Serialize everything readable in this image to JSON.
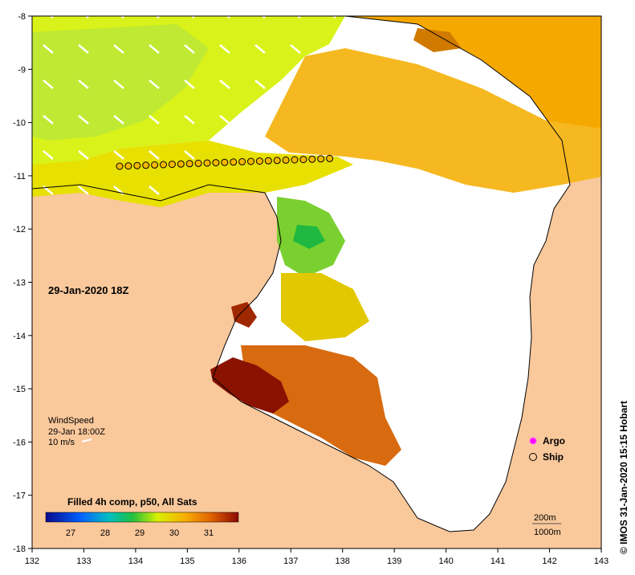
{
  "map": {
    "x_ticks": [
      "132",
      "133",
      "134",
      "135",
      "136",
      "137",
      "138",
      "139",
      "140",
      "141",
      "142",
      "143"
    ],
    "y_ticks": [
      "-8",
      "-9",
      "-10",
      "-11",
      "-12",
      "-13",
      "-14",
      "-15",
      "-16",
      "-17",
      "-18"
    ],
    "time_label": "29-Jan-2020 18Z",
    "wind": {
      "title": "WindSpeed",
      "time": "29-Jan 18:00Z",
      "scale": "10 m/s"
    },
    "legend": {
      "argo": "Argo",
      "ship": "Ship"
    },
    "colorbar": {
      "title": "Filled 4h comp, p50, All Sats",
      "ticks": [
        "27",
        "28",
        "29",
        "30",
        "31"
      ]
    },
    "contours": {
      "depth_200": "200m",
      "depth_1000": "1000m"
    },
    "credit": "© IMOS 31-Jan-2020 15:15 Hobart",
    "colors": {
      "land": "#f9c89b",
      "no_data": "#ffffff",
      "warm": "#7a0a00",
      "cool": "#1c9a3a"
    }
  }
}
